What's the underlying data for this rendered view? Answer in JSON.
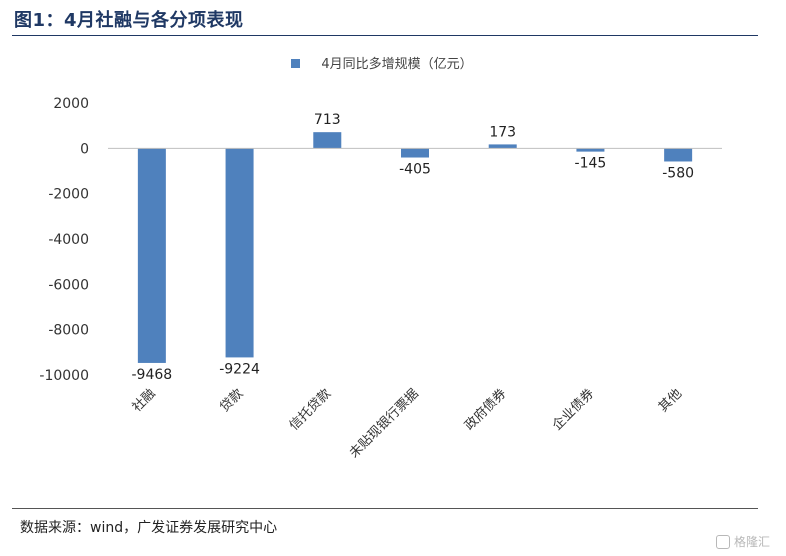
{
  "header": {
    "title": "图1：4月社融与各分项表现"
  },
  "footer": {
    "source": "数据来源：wind，广发证券发展研究中心"
  },
  "watermark": {
    "text": "格隆汇"
  },
  "chart_data": {
    "type": "bar",
    "title": "",
    "xlabel": "",
    "ylabel": "",
    "categories": [
      "社融",
      "贷款",
      "信托贷款",
      "未贴现银行票据",
      "政府债券",
      "企业债券",
      "其他"
    ],
    "series": [
      {
        "name": "4月同比多增规模（亿元）",
        "values": [
          -9468,
          -9224,
          713,
          -405,
          173,
          -145,
          -580
        ]
      }
    ],
    "ylim": [
      -10000,
      2000
    ],
    "yticks": [
      2000,
      0,
      -2000,
      -4000,
      -6000,
      -8000,
      -10000
    ],
    "grid": false,
    "legend": "top-center",
    "colors": {
      "bar": "#4f81bd",
      "axis": "#bfbfbf"
    },
    "data_labels": true
  }
}
